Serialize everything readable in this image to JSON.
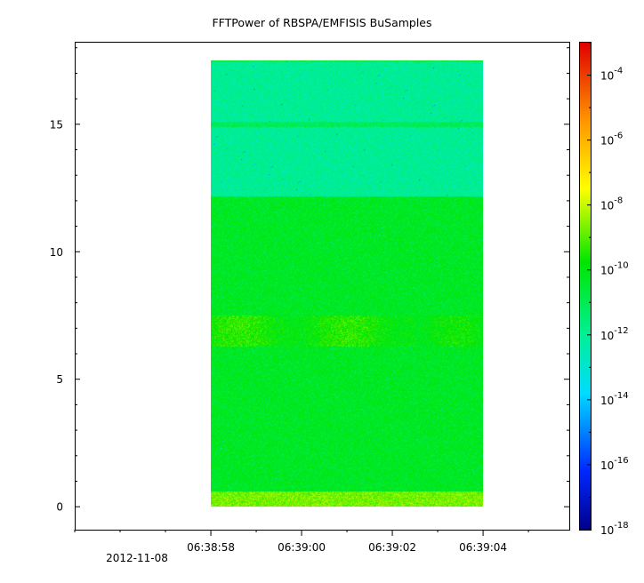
{
  "chart_data": {
    "type": "heatmap",
    "title": "FFTPower of RBSPA/EMFISIS  BuSamples",
    "xlabel": "",
    "ylabel": "",
    "x_ticks": [
      "06:38:58",
      "06:39:00",
      "06:39:02",
      "06:39:04"
    ],
    "x_date_label": "2012-11-08",
    "x_range_seconds": [
      -3.0,
      7.9
    ],
    "data_x_range_seconds": [
      0.0,
      6.0
    ],
    "y_ticks": [
      0,
      5,
      10,
      15
    ],
    "ylim": [
      -0.9,
      18.2
    ],
    "data_y_range": [
      0,
      17.5
    ],
    "colorbar": {
      "scale": "log",
      "range": [
        1e-18,
        0.001
      ],
      "tick_labels": [
        {
          "base": "10",
          "exp": "-4"
        },
        {
          "base": "10",
          "exp": "-6"
        },
        {
          "base": "10",
          "exp": "-8"
        },
        {
          "base": "10",
          "exp": "-10"
        },
        {
          "base": "10",
          "exp": "-12"
        },
        {
          "base": "10",
          "exp": "-14"
        },
        {
          "base": "10",
          "exp": "-16"
        },
        {
          "base": "10",
          "exp": "-18"
        }
      ],
      "tick_values": [
        0.0001,
        1e-06,
        1e-08,
        1e-10,
        1e-12,
        1e-14,
        1e-16,
        1e-18
      ]
    },
    "bands": [
      {
        "y_from": 0,
        "y_to": 0.6,
        "log_power": -8.7
      },
      {
        "y_from": 0.6,
        "y_to": 12.2,
        "log_power": -10.3
      },
      {
        "y_from": 6.3,
        "y_to": 7.5,
        "log_power": -9.7
      },
      {
        "y_from": 12.2,
        "y_to": 17.5,
        "log_power": -12.0
      },
      {
        "y_from": 14.9,
        "y_to": 15.1,
        "log_power": -11.1
      }
    ],
    "grid": false
  }
}
